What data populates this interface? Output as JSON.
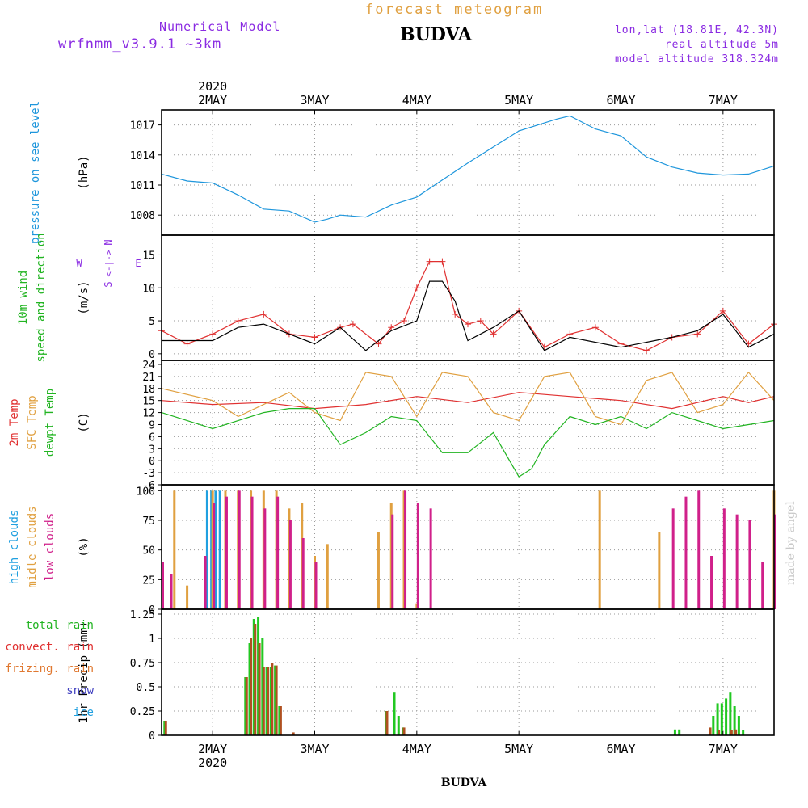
{
  "header": {
    "model_label": "Numerical Model",
    "model_version": "wrfnmm_v3.9.1   ~3km",
    "title": "forecast meteogram",
    "station": "BUDVA",
    "lonlat": "lon,lat (18.81E, 42.3N)",
    "real_altitude": "real altitude 5m",
    "model_altitude": "model altitude  318.324m"
  },
  "footer": {
    "station": "BUDVA",
    "credit": "made by angel"
  },
  "colors": {
    "pressure": "#1e96dc",
    "wind_speed": "#e03030",
    "wind_gust": "#000000",
    "temp2m": "#e03030",
    "sfc_temp": "#e0a040",
    "dewpoint": "#22b422",
    "high_clouds": "#20a0e0",
    "mid_clouds": "#e0a040",
    "low_clouds": "#d0208a",
    "total_rain": "#22c822",
    "convective_rain": "#b05020"
  },
  "chart_data": {
    "type": "meteogram",
    "year": "2020",
    "time_axis": {
      "start": "2020-05-01T12:00",
      "end": "2020-05-07T12:00",
      "labels": [
        "2MAY",
        "3MAY",
        "4MAY",
        "5MAY",
        "6MAY",
        "7MAY"
      ],
      "label_dates": [
        "2020-05-02T00:00",
        "2020-05-03T00:00",
        "2020-05-04T00:00",
        "2020-05-05T00:00",
        "2020-05-06T00:00",
        "2020-05-07T00:00"
      ],
      "grid": true
    },
    "panels": [
      {
        "id": "pressure",
        "type": "line",
        "ylabel": "(hPa)",
        "label_lines": [
          {
            "text": "pressure on see level",
            "color": "#1e96dc"
          }
        ],
        "ylim": [
          1006,
          1018.5
        ],
        "yticks": [
          1008,
          1011,
          1014,
          1017
        ],
        "series": [
          {
            "name": "pressure on see level",
            "color": "#1e96dc",
            "x": [
              "2020-05-01T12:00",
              "2020-05-01T18:00",
              "2020-05-02T00:00",
              "2020-05-02T06:00",
              "2020-05-02T12:00",
              "2020-05-02T18:00",
              "2020-05-03T00:00",
              "2020-05-03T03:00",
              "2020-05-03T06:00",
              "2020-05-03T12:00",
              "2020-05-03T18:00",
              "2020-05-04T00:00",
              "2020-05-04T06:00",
              "2020-05-04T12:00",
              "2020-05-04T18:00",
              "2020-05-05T00:00",
              "2020-05-05T06:00",
              "2020-05-05T09:00",
              "2020-05-05T12:00",
              "2020-05-05T18:00",
              "2020-05-06T00:00",
              "2020-05-06T06:00",
              "2020-05-06T12:00",
              "2020-05-06T18:00",
              "2020-05-07T00:00",
              "2020-05-07T06:00",
              "2020-05-07T12:00"
            ],
            "y": [
              1012.1,
              1011.4,
              1011.2,
              1010.0,
              1008.6,
              1008.4,
              1007.3,
              1007.6,
              1008.0,
              1007.8,
              1009.0,
              1009.8,
              1011.5,
              1013.2,
              1014.8,
              1016.4,
              1017.2,
              1017.6,
              1017.9,
              1016.6,
              1015.9,
              1013.8,
              1012.8,
              1012.2,
              1012.0,
              1012.1,
              1012.9
            ]
          }
        ]
      },
      {
        "id": "wind",
        "type": "line",
        "ylabel": "(m/s)",
        "label_lines": [
          {
            "text": "10m wind",
            "color": "#22b422"
          },
          {
            "text": "speed and direction",
            "color": "#22b422"
          }
        ],
        "compass": [
          "N",
          "W",
          "<-|->",
          "E",
          "S"
        ],
        "ylim": [
          -1,
          18
        ],
        "yticks": [
          0,
          5,
          10,
          15
        ],
        "series": [
          {
            "name": "wind speed",
            "color": "#e03030",
            "marker": "+",
            "x": [
              "2020-05-01T12:00",
              "2020-05-01T18:00",
              "2020-05-02T00:00",
              "2020-05-02T06:00",
              "2020-05-02T12:00",
              "2020-05-02T18:00",
              "2020-05-03T00:00",
              "2020-05-03T06:00",
              "2020-05-03T09:00",
              "2020-05-03T15:00",
              "2020-05-03T18:00",
              "2020-05-03T21:00",
              "2020-05-04T00:00",
              "2020-05-04T03:00",
              "2020-05-04T06:00",
              "2020-05-04T09:00",
              "2020-05-04T12:00",
              "2020-05-04T15:00",
              "2020-05-04T18:00",
              "2020-05-05T00:00",
              "2020-05-05T06:00",
              "2020-05-05T12:00",
              "2020-05-05T18:00",
              "2020-05-06T00:00",
              "2020-05-06T06:00",
              "2020-05-06T12:00",
              "2020-05-06T18:00",
              "2020-05-07T00:00",
              "2020-05-07T06:00",
              "2020-05-07T12:00"
            ],
            "y": [
              3.5,
              1.5,
              3.0,
              5.0,
              6.0,
              3.0,
              2.5,
              4.0,
              4.5,
              1.5,
              4.0,
              5.0,
              10.0,
              14.0,
              14.0,
              6.0,
              4.5,
              5.0,
              3.0,
              6.5,
              1.0,
              3.0,
              4.0,
              1.5,
              0.5,
              2.5,
              3.0,
              6.5,
              1.5,
              4.5
            ]
          },
          {
            "name": "wind gust",
            "color": "#000000",
            "x": [
              "2020-05-01T12:00",
              "2020-05-02T00:00",
              "2020-05-02T06:00",
              "2020-05-02T12:00",
              "2020-05-03T00:00",
              "2020-05-03T06:00",
              "2020-05-03T12:00",
              "2020-05-03T18:00",
              "2020-05-04T00:00",
              "2020-05-04T03:00",
              "2020-05-04T06:00",
              "2020-05-04T09:00",
              "2020-05-04T12:00",
              "2020-05-04T18:00",
              "2020-05-05T00:00",
              "2020-05-05T06:00",
              "2020-05-05T12:00",
              "2020-05-06T00:00",
              "2020-05-06T12:00",
              "2020-05-06T18:00",
              "2020-05-07T00:00",
              "2020-05-07T06:00",
              "2020-05-07T12:00"
            ],
            "y": [
              2.0,
              2.0,
              4.0,
              4.5,
              1.5,
              4.0,
              0.5,
              3.5,
              5.0,
              11.0,
              11.0,
              8.0,
              2.0,
              4.0,
              6.5,
              0.5,
              2.5,
              1.0,
              2.5,
              3.5,
              6.0,
              1.0,
              3.0
            ]
          }
        ]
      },
      {
        "id": "temperature",
        "type": "line",
        "ylabel": "(C)",
        "label_lines": [
          {
            "text": "2m Temp",
            "color": "#e03030"
          },
          {
            "text": "SFC Temp",
            "color": "#e0a040"
          },
          {
            "text": "dewpt Temp",
            "color": "#22b422"
          }
        ],
        "ylim": [
          -6,
          25
        ],
        "yticks": [
          -6,
          -3,
          0,
          3,
          6,
          9,
          12,
          15,
          18,
          21,
          24
        ],
        "series": [
          {
            "name": "2m Temp",
            "color": "#e03030",
            "x": [
              "2020-05-01T12:00",
              "2020-05-02T00:00",
              "2020-05-02T12:00",
              "2020-05-03T00:00",
              "2020-05-03T12:00",
              "2020-05-04T00:00",
              "2020-05-04T12:00",
              "2020-05-05T00:00",
              "2020-05-05T12:00",
              "2020-05-06T00:00",
              "2020-05-06T12:00",
              "2020-05-07T00:00",
              "2020-05-07T06:00",
              "2020-05-07T12:00"
            ],
            "y": [
              15.0,
              14.0,
              14.5,
              13.0,
              14.0,
              16.0,
              14.5,
              17.0,
              16.0,
              15.0,
              13.0,
              16.0,
              14.5,
              16.0
            ]
          },
          {
            "name": "SFC Temp",
            "color": "#e0a040",
            "x": [
              "2020-05-01T12:00",
              "2020-05-02T00:00",
              "2020-05-02T06:00",
              "2020-05-02T12:00",
              "2020-05-02T18:00",
              "2020-05-03T00:00",
              "2020-05-03T06:00",
              "2020-05-03T12:00",
              "2020-05-03T18:00",
              "2020-05-04T00:00",
              "2020-05-04T06:00",
              "2020-05-04T12:00",
              "2020-05-04T18:00",
              "2020-05-05T00:00",
              "2020-05-05T06:00",
              "2020-05-05T12:00",
              "2020-05-05T18:00",
              "2020-05-06T00:00",
              "2020-05-06T06:00",
              "2020-05-06T12:00",
              "2020-05-06T18:00",
              "2020-05-07T00:00",
              "2020-05-07T06:00",
              "2020-05-07T12:00"
            ],
            "y": [
              18.0,
              15.0,
              11.0,
              14.0,
              17.0,
              12.0,
              10.0,
              22.0,
              21.0,
              11.0,
              22.0,
              21.0,
              12.0,
              10.0,
              21.0,
              22.0,
              11.0,
              9.0,
              20.0,
              22.0,
              12.0,
              14.0,
              22.0,
              15.0
            ]
          },
          {
            "name": "dewpt Temp",
            "color": "#22b422",
            "x": [
              "2020-05-01T12:00",
              "2020-05-02T00:00",
              "2020-05-02T12:00",
              "2020-05-02T18:00",
              "2020-05-03T00:00",
              "2020-05-03T06:00",
              "2020-05-03T12:00",
              "2020-05-03T18:00",
              "2020-05-04T00:00",
              "2020-05-04T06:00",
              "2020-05-04T12:00",
              "2020-05-04T18:00",
              "2020-05-05T00:00",
              "2020-05-05T03:00",
              "2020-05-05T06:00",
              "2020-05-05T12:00",
              "2020-05-05T18:00",
              "2020-05-06T00:00",
              "2020-05-06T06:00",
              "2020-05-06T12:00",
              "2020-05-06T18:00",
              "2020-05-07T00:00",
              "2020-05-07T06:00",
              "2020-05-07T12:00"
            ],
            "y": [
              12.0,
              8.0,
              12.0,
              13.0,
              13.0,
              4.0,
              7.0,
              11.0,
              10.0,
              2.0,
              2.0,
              7.0,
              -4.0,
              -2.0,
              4.0,
              11.0,
              9.0,
              11.0,
              8.0,
              12.0,
              10.0,
              8.0,
              9.0,
              10.0
            ]
          }
        ]
      },
      {
        "id": "clouds",
        "type": "bar",
        "ylabel": "(%)",
        "label_lines": [
          {
            "text": "high   clouds",
            "color": "#20a0e0"
          },
          {
            "text": "midle clouds",
            "color": "#e0a040"
          },
          {
            "text": "low    clouds",
            "color": "#d0208a"
          }
        ],
        "ylim": [
          0,
          105
        ],
        "yticks": [
          0,
          25,
          50,
          75,
          100
        ],
        "series": [
          {
            "name": "high clouds",
            "color": "#20a0e0",
            "x": [
              "2020-05-01T23:00",
              "2020-05-02T00:00",
              "2020-05-02T01:00",
              "2020-05-02T02:00"
            ],
            "y": [
              100,
              100,
              100,
              100
            ]
          },
          {
            "name": "midle clouds",
            "color": "#e0a040",
            "x": [
              "2020-05-01T15:00",
              "2020-05-01T18:00",
              "2020-05-02T00:00",
              "2020-05-02T03:00",
              "2020-05-02T06:00",
              "2020-05-02T09:00",
              "2020-05-02T12:00",
              "2020-05-02T15:00",
              "2020-05-02T18:00",
              "2020-05-02T21:00",
              "2020-05-03T00:00",
              "2020-05-03T03:00",
              "2020-05-03T15:00",
              "2020-05-03T18:00",
              "2020-05-03T21:00",
              "2020-05-04T00:00",
              "2020-05-05T19:00",
              "2020-05-06T09:00",
              "2020-05-07T12:00"
            ],
            "y": [
              100,
              20,
              100,
              100,
              100,
              100,
              100,
              100,
              85,
              90,
              45,
              55,
              65,
              90,
              100,
              5,
              100,
              65,
              100
            ]
          },
          {
            "name": "low clouds",
            "color": "#d0208a",
            "x": [
              "2020-05-01T12:00",
              "2020-05-01T14:00",
              "2020-05-01T22:00",
              "2020-05-02T00:00",
              "2020-05-02T03:00",
              "2020-05-02T06:00",
              "2020-05-02T09:00",
              "2020-05-02T12:00",
              "2020-05-02T15:00",
              "2020-05-02T18:00",
              "2020-05-02T21:00",
              "2020-05-03T00:00",
              "2020-05-03T18:00",
              "2020-05-03T21:00",
              "2020-05-04T00:00",
              "2020-05-04T03:00",
              "2020-05-06T12:00",
              "2020-05-06T15:00",
              "2020-05-06T18:00",
              "2020-05-06T21:00",
              "2020-05-07T00:00",
              "2020-05-07T03:00",
              "2020-05-07T06:00",
              "2020-05-07T09:00",
              "2020-05-07T12:00"
            ],
            "y": [
              40,
              30,
              45,
              90,
              95,
              100,
              95,
              85,
              95,
              75,
              60,
              40,
              80,
              100,
              90,
              85,
              85,
              95,
              100,
              45,
              85,
              80,
              75,
              40,
              80
            ]
          }
        ]
      },
      {
        "id": "precip",
        "type": "bar",
        "ylabel": "1hr Precip (mm)",
        "label_lines": [
          {
            "text": "total     rain",
            "color": "#22b422"
          },
          {
            "text": "convect. rain",
            "color": "#e03030"
          },
          {
            "text": "frizing. rain",
            "color": "#e07830"
          },
          {
            "text": "snow",
            "color": "#4040c0"
          },
          {
            "text": "ice",
            "color": "#20a0e0"
          }
        ],
        "ylim": [
          0,
          1.3
        ],
        "yticks": [
          0,
          0.25,
          0.5,
          0.75,
          1,
          1.25
        ],
        "yticklabels": [
          "0",
          "0.25",
          "0.5",
          "0.75",
          "1",
          "1.25"
        ],
        "series": [
          {
            "name": "total rain",
            "color": "#22c822",
            "x": [
              "2020-05-01T13:00",
              "2020-05-02T08:00",
              "2020-05-02T09:00",
              "2020-05-02T10:00",
              "2020-05-02T11:00",
              "2020-05-02T12:00",
              "2020-05-02T13:00",
              "2020-05-02T14:00",
              "2020-05-02T15:00",
              "2020-05-02T16:00",
              "2020-05-03T17:00",
              "2020-05-03T19:00",
              "2020-05-03T20:00",
              "2020-05-03T21:00",
              "2020-05-06T13:00",
              "2020-05-06T14:00",
              "2020-05-06T22:00",
              "2020-05-06T23:00",
              "2020-05-07T00:00",
              "2020-05-07T01:00",
              "2020-05-07T02:00",
              "2020-05-07T03:00",
              "2020-05-07T04:00",
              "2020-05-07T05:00"
            ],
            "y": [
              0.15,
              0.6,
              0.95,
              1.2,
              1.22,
              1.0,
              0.7,
              0.7,
              0.72,
              0.3,
              0.25,
              0.44,
              0.2,
              0.08,
              0.06,
              0.06,
              0.2,
              0.33,
              0.33,
              0.38,
              0.44,
              0.3,
              0.2,
              0.05
            ]
          },
          {
            "name": "convect. rain",
            "color": "#b05020",
            "x": [
              "2020-05-01T13:00",
              "2020-05-02T08:00",
              "2020-05-02T09:00",
              "2020-05-02T10:00",
              "2020-05-02T11:00",
              "2020-05-02T12:00",
              "2020-05-02T13:00",
              "2020-05-02T14:00",
              "2020-05-02T15:00",
              "2020-05-02T16:00",
              "2020-05-02T19:00",
              "2020-05-03T17:00",
              "2020-05-03T21:00",
              "2020-05-06T21:00",
              "2020-05-06T23:00",
              "2020-05-07T02:00",
              "2020-05-07T03:00"
            ],
            "y": [
              0.15,
              0.6,
              1.0,
              1.15,
              0.95,
              0.7,
              0.7,
              0.75,
              0.72,
              0.3,
              0.03,
              0.25,
              0.08,
              0.08,
              0.05,
              0.05,
              0.06
            ]
          }
        ]
      }
    ]
  }
}
